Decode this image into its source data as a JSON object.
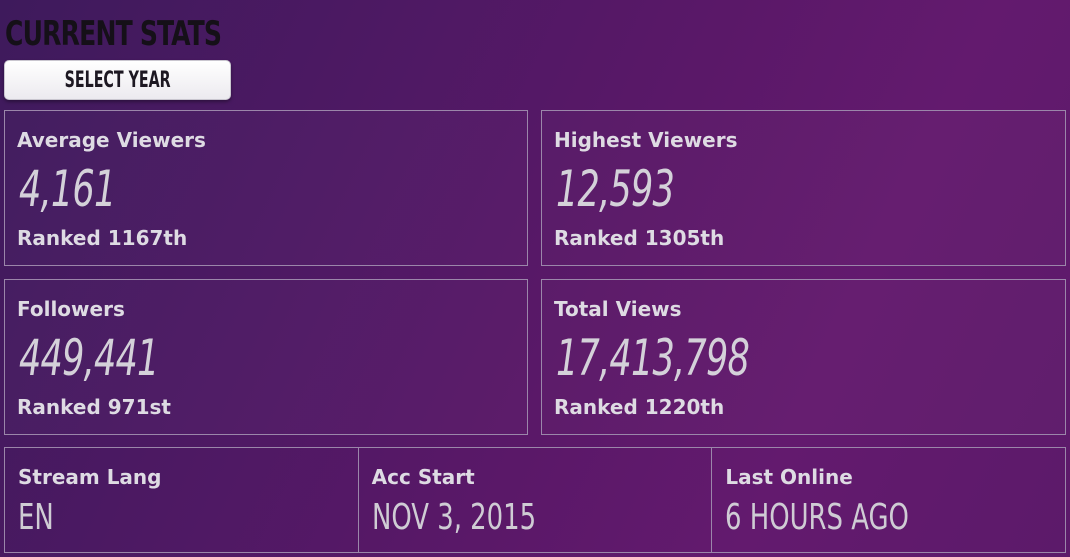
{
  "header": {
    "title": "CURRENT STATS",
    "select_year_label": "SELECT YEAR"
  },
  "stats": [
    {
      "label": "Average Viewers",
      "value": "4,161",
      "rank": "Ranked 1167th"
    },
    {
      "label": "Highest Viewers",
      "value": "12,593",
      "rank": "Ranked 1305th"
    },
    {
      "label": "Followers",
      "value": "449,441",
      "rank": "Ranked 971st"
    },
    {
      "label": "Total Views",
      "value": "17,413,798",
      "rank": "Ranked 1220th"
    }
  ],
  "info": [
    {
      "label": "Stream Lang",
      "value": "EN"
    },
    {
      "label": "Acc Start",
      "value": "NOV 3, 2015"
    },
    {
      "label": "Last Online",
      "value": "6 HOURS AGO"
    }
  ],
  "colors": {
    "background": "#5a1868",
    "border": "#9b86aa",
    "text": "#d9d6de",
    "title": "#151018"
  }
}
